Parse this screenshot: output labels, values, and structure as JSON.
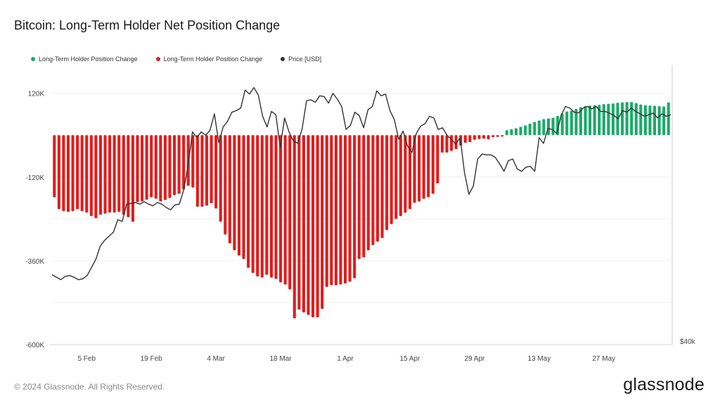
{
  "title": "Bitcoin: Long-Term Holder Net Position Change",
  "legend": [
    {
      "label": "Long-Term Holder Position Change",
      "color": "#1aaa6a"
    },
    {
      "label": "Long-Term Holder Position Change",
      "color": "#e31b1b"
    },
    {
      "label": "Price [USD]",
      "color": "#333333"
    }
  ],
  "footer": "© 2024 Glassnode. All Rights Reserved.",
  "brand": "glassnode",
  "chart_data": {
    "type": "bar",
    "title": "Bitcoin: Long-Term Holder Net Position Change",
    "xlabel": "",
    "ylabel": "",
    "ylim": [
      -600000,
      200000
    ],
    "y_ticks": [
      {
        "value": 120000,
        "label": "120K"
      },
      {
        "value": -120000,
        "label": "-120K"
      },
      {
        "value": -360000,
        "label": "-360K"
      },
      {
        "value": -600000,
        "label": "-600K"
      }
    ],
    "right_axis_label": "$40k",
    "x_ticks": [
      {
        "index": 7,
        "label": "5 Feb"
      },
      {
        "index": 21,
        "label": "19 Feb"
      },
      {
        "index": 35,
        "label": "4 Mar"
      },
      {
        "index": 49,
        "label": "18 Mar"
      },
      {
        "index": 63,
        "label": "1 Apr"
      },
      {
        "index": 77,
        "label": "15 Apr"
      },
      {
        "index": 91,
        "label": "29 Apr"
      },
      {
        "index": 105,
        "label": "13 May"
      },
      {
        "index": 119,
        "label": "27 May"
      }
    ],
    "series": [
      {
        "name": "Long-Term Holder Position Change",
        "color_positive": "#1aaa6a",
        "color_negative": "#e31b1b",
        "values": [
          -178000,
          -212000,
          -218000,
          -220000,
          -218000,
          -212000,
          -218000,
          -222000,
          -232000,
          -238000,
          -228000,
          -225000,
          -222000,
          -222000,
          -220000,
          -228000,
          -235000,
          -248000,
          -192000,
          -190000,
          -185000,
          -178000,
          -182000,
          -190000,
          -186000,
          -180000,
          -172000,
          -168000,
          -155000,
          -145000,
          -150000,
          -205000,
          -205000,
          -202000,
          -195000,
          -210000,
          -248000,
          -285000,
          -310000,
          -330000,
          -345000,
          -355000,
          -380000,
          -395000,
          -405000,
          -408000,
          -400000,
          -408000,
          -412000,
          -422000,
          -428000,
          -442000,
          -525000,
          -500000,
          -508000,
          -515000,
          -522000,
          -522000,
          -498000,
          -435000,
          -430000,
          -430000,
          -428000,
          -425000,
          -420000,
          -410000,
          -355000,
          -350000,
          -330000,
          -315000,
          -305000,
          -295000,
          -272000,
          -255000,
          -240000,
          -232000,
          -222000,
          -212000,
          -194000,
          -190000,
          -182000,
          -178000,
          -168000,
          -138000,
          -50000,
          -50000,
          -45000,
          -40000,
          -30000,
          -22000,
          -20000,
          -13000,
          -11000,
          -10000,
          -12000,
          -6000,
          -5000,
          -4000,
          14000,
          17000,
          20000,
          24000,
          28000,
          33000,
          38000,
          42000,
          46000,
          48000,
          50000,
          55000,
          62000,
          68000,
          70000,
          75000,
          80000,
          83000,
          85000,
          86000,
          87000,
          89000,
          90000,
          91000,
          93000,
          94000,
          95000,
          95000,
          92000,
          88000,
          86000,
          85000,
          84000,
          83000,
          82000,
          94000
        ]
      },
      {
        "name": "Price [USD]",
        "color": "#333333",
        "values": [
          48500,
          48200,
          47900,
          48300,
          48400,
          48200,
          47900,
          48000,
          48400,
          49400,
          50400,
          52000,
          52700,
          53200,
          53700,
          55200,
          55000,
          57100,
          57200,
          57300,
          57100,
          57400,
          57100,
          56900,
          57300,
          57100,
          56700,
          56400,
          57000,
          57100,
          58800,
          61800,
          65900,
          65200,
          65900,
          65500,
          66100,
          68100,
          64600,
          66500,
          67200,
          68300,
          68500,
          68800,
          71000,
          70500,
          71300,
          70400,
          67800,
          66500,
          68400,
          68000,
          64000,
          67600,
          65900,
          64800,
          64500,
          66300,
          69700,
          69800,
          69500,
          70300,
          70200,
          69400,
          70600,
          69900,
          69000,
          66200,
          66700,
          68300,
          67900,
          66400,
          68600,
          69000,
          70900,
          70300,
          70500,
          68500,
          67400,
          65000,
          66000,
          64200,
          63400,
          65700,
          66600,
          66900,
          67800,
          67600,
          66200,
          66400,
          65500,
          65000,
          64400,
          65200,
          60900,
          58300,
          59300,
          62600,
          63200,
          63100,
          63100,
          62800,
          62000,
          61100,
          62400,
          62600,
          61400,
          61100,
          61600,
          61700,
          61100,
          65200,
          64500,
          66300,
          66200,
          65700,
          67900,
          69000,
          68800,
          68300,
          68200,
          68800,
          69000,
          68700,
          69000,
          68400,
          68400,
          68200,
          67900,
          67500,
          68500,
          68300,
          68800,
          68400,
          68100,
          67800,
          68000,
          68200,
          67600,
          68100,
          67800,
          68000
        ]
      }
    ],
    "price_axis": {
      "min": 40000,
      "max": 74000
    }
  }
}
